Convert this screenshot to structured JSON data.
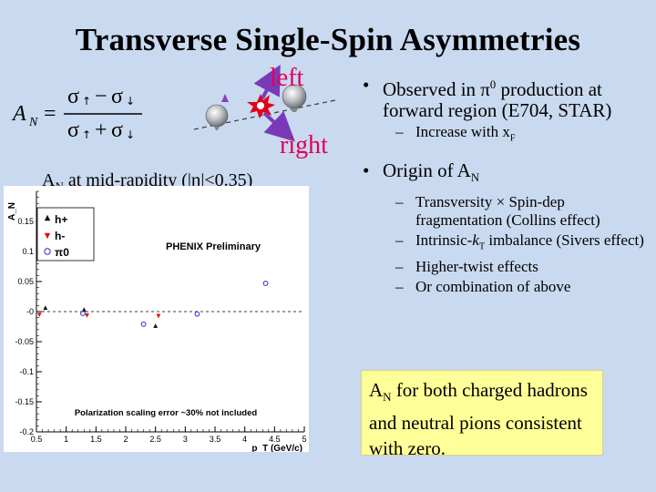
{
  "title": "Transverse Single-Spin Asymmetries",
  "diagram": {
    "left_label": "left",
    "right_label": "right"
  },
  "formula": {
    "lhs": "A",
    "lhs_sub": "N",
    "num_a": "σ",
    "num_b": "σ",
    "den_a": "σ",
    "den_b": "σ"
  },
  "mid_rapidity_label": {
    "pre": "A",
    "sub": "N",
    "post": " at mid-rapidity (|η|<0.35)"
  },
  "bullets": [
    {
      "html": "Observed in π<sup>0</sup> production at forward region (E704, STAR)"
    },
    {
      "html": "Increase with x<sub>F</sub>",
      "level": 2
    },
    {
      "html": "Origin of A<sub>N</sub>"
    },
    {
      "html": "Transversity × Spin-dep fragmentation (Collins effect)",
      "level": 2
    },
    {
      "html": "Intrinsic-<i>k</i><sub>T</sub> imbalance (Sivers effect)",
      "level": 2
    },
    {
      "html": "Higher-twist effects",
      "level": 2
    },
    {
      "html": "Or combination of above",
      "level": 2
    }
  ],
  "note": {
    "pre": "A",
    "sub": "N",
    "post": " for both charged hadrons and neutral pions consistent with zero."
  },
  "chart_data": {
    "type": "scatter",
    "title": "PHENIX Preliminary",
    "xlabel": "p_T (GeV/c)",
    "ylabel": "A_N",
    "xlim": [
      0.5,
      5.0
    ],
    "ylim": [
      -0.2,
      0.2
    ],
    "x_ticks": [
      "0.5",
      "1",
      "1.5",
      "2",
      "2.5",
      "3",
      "3.5",
      "4",
      "4.5",
      "5"
    ],
    "y_ticks": [
      "-0.2",
      "-0.15",
      "-0.1",
      "-0.05",
      "-0",
      "0.05",
      "0.1",
      "0.15"
    ],
    "annotation": "Polarization scaling error ~30% not included",
    "series": [
      {
        "name": "h+",
        "color": "#111111",
        "marker": "triangle-up",
        "points": [
          {
            "x": 0.65,
            "y": 0.005
          },
          {
            "x": 1.3,
            "y": 0.002
          },
          {
            "x": 2.5,
            "y": -0.025
          }
        ]
      },
      {
        "name": "h-",
        "color": "#e01010",
        "marker": "triangle-down",
        "points": [
          {
            "x": 0.55,
            "y": -0.004
          },
          {
            "x": 1.35,
            "y": -0.005
          },
          {
            "x": 2.55,
            "y": -0.006
          }
        ]
      },
      {
        "name": "π0",
        "color": "#2030c0",
        "marker": "open-circle",
        "points": [
          {
            "x": 1.28,
            "y": -0.003
          },
          {
            "x": 2.3,
            "y": -0.021
          },
          {
            "x": 3.2,
            "y": -0.004
          },
          {
            "x": 4.35,
            "y": 0.047
          }
        ]
      }
    ]
  }
}
